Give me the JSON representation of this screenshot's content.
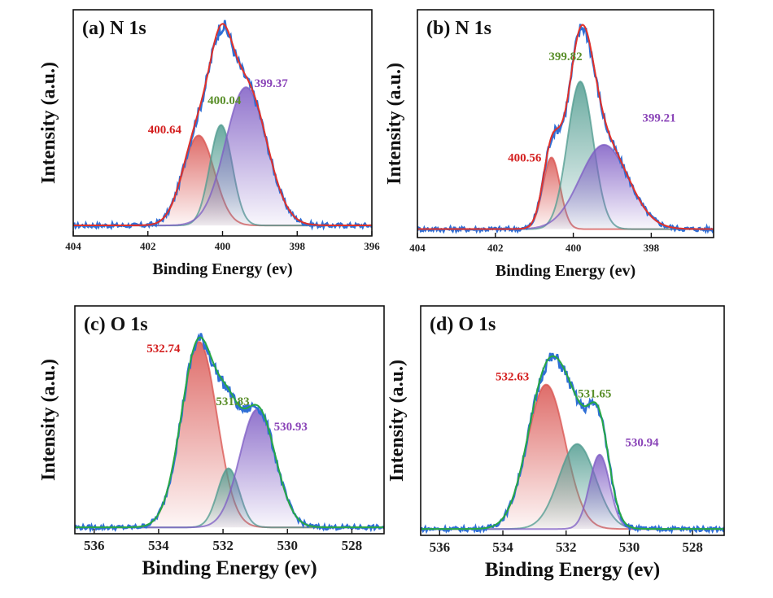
{
  "chart_data": [
    {
      "panel": "a",
      "type": "line",
      "title": "(a)  N 1s",
      "xlabel": "Binding Energy (ev)",
      "ylabel": "Intensity (a.u.)",
      "xlim": [
        404,
        396
      ],
      "xticks": [
        "404",
        "402",
        "400",
        "398",
        "396"
      ],
      "xtick_values": [
        404,
        402,
        400,
        398,
        396
      ],
      "ylim": [
        0,
        1.08
      ],
      "baseline": 0.05,
      "peaks": [
        {
          "label": "400.64",
          "center": 400.64,
          "height": 0.43,
          "sigma": 0.42,
          "color": "#d9534f",
          "label_color": "#d42020",
          "label_at": [
            401.55,
            0.49
          ]
        },
        {
          "label": "400.04",
          "center": 400.04,
          "height": 0.48,
          "sigma": 0.3,
          "color": "#4f9b8f",
          "label_color": "#5a8f2a",
          "label_at": [
            399.95,
            0.63
          ]
        },
        {
          "label": "399.37",
          "center": 399.37,
          "height": 0.66,
          "sigma": 0.55,
          "color": "#7e5cc4",
          "label_color": "#8a44b8",
          "label_at": [
            398.7,
            0.71
          ]
        }
      ],
      "envelope_color": "#e0312a",
      "measured_color": "#2f6fd6"
    },
    {
      "panel": "b",
      "type": "line",
      "title": "(b)  N 1s",
      "xlabel": "Binding Energy (ev)",
      "ylabel": "Intensity (a.u.)",
      "xlim": [
        404,
        396.4
      ],
      "xticks": [
        "404",
        "402",
        "400",
        "398"
      ],
      "xtick_values": [
        404,
        402,
        400,
        398
      ],
      "ylim": [
        0,
        1.08
      ],
      "baseline": 0.04,
      "peaks": [
        {
          "label": "400.56",
          "center": 400.56,
          "height": 0.34,
          "sigma": 0.22,
          "color": "#d9534f",
          "label_color": "#d42020",
          "label_at": [
            401.25,
            0.36
          ]
        },
        {
          "label": "399.82",
          "center": 399.82,
          "height": 0.7,
          "sigma": 0.33,
          "color": "#4f9b8f",
          "label_color": "#5a8f2a",
          "label_at": [
            400.2,
            0.84
          ]
        },
        {
          "label": "399.21",
          "center": 399.21,
          "height": 0.4,
          "sigma": 0.62,
          "color": "#7e5cc4",
          "label_color": "#8a44b8",
          "label_at": [
            397.8,
            0.55
          ]
        }
      ],
      "envelope_color": "#e0312a",
      "measured_color": "#2f6fd6"
    },
    {
      "panel": "c",
      "type": "line",
      "title": "(c)  O 1s",
      "xlabel": "Binding Energy (ev)",
      "ylabel": "Intensity (a.u.)",
      "xlim": [
        536.6,
        527
      ],
      "xticks": [
        "536",
        "534",
        "532",
        "530",
        "528"
      ],
      "xtick_values": [
        536,
        534,
        532,
        530,
        528
      ],
      "ylim": [
        0,
        1.08
      ],
      "baseline": 0.03,
      "peaks": [
        {
          "label": "532.74",
          "center": 532.74,
          "height": 0.88,
          "sigma": 0.55,
          "color": "#d9534f",
          "label_color": "#d42020",
          "label_at": [
            533.85,
            0.86
          ]
        },
        {
          "label": "531.83",
          "center": 531.83,
          "height": 0.28,
          "sigma": 0.34,
          "color": "#4f9b8f",
          "label_color": "#5a8f2a",
          "label_at": [
            531.7,
            0.61
          ]
        },
        {
          "label": "530.93",
          "center": 530.93,
          "height": 0.56,
          "sigma": 0.55,
          "color": "#7e5cc4",
          "label_color": "#8a44b8",
          "label_at": [
            529.9,
            0.49
          ]
        }
      ],
      "envelope_color": "#27a844",
      "measured_color": "#2f6fd6"
    },
    {
      "panel": "d",
      "type": "line",
      "title": "(d)  O 1s",
      "xlabel": "Binding Energy (ev)",
      "ylabel": "Intensity (a.u.)",
      "xlim": [
        536.6,
        527
      ],
      "xticks": [
        "536",
        "534",
        "532",
        "530",
        "528"
      ],
      "xtick_values": [
        536,
        534,
        532,
        530,
        528
      ],
      "ylim": [
        0,
        1.08
      ],
      "baseline": 0.03,
      "peaks": [
        {
          "label": "532.63",
          "center": 532.63,
          "height": 0.68,
          "sigma": 0.6,
          "color": "#d9534f",
          "label_color": "#d42020",
          "label_at": [
            533.7,
            0.73
          ]
        },
        {
          "label": "531.65",
          "center": 531.65,
          "height": 0.4,
          "sigma": 0.58,
          "color": "#4f9b8f",
          "label_color": "#5a8f2a",
          "label_at": [
            531.1,
            0.65
          ]
        },
        {
          "label": "530.94",
          "center": 530.94,
          "height": 0.35,
          "sigma": 0.32,
          "color": "#7e5cc4",
          "label_color": "#8a44b8",
          "label_at": [
            529.6,
            0.42
          ]
        }
      ],
      "envelope_color": "#27a844",
      "measured_color": "#2f6fd6"
    }
  ]
}
